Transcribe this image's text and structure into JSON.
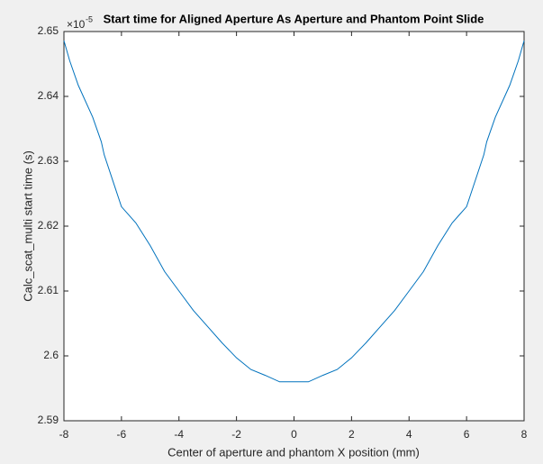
{
  "chart_data": {
    "type": "line",
    "title": "Start time for Aligned Aperture As Aperture and Phantom Point Slide",
    "x_label": "Center of aperture and phantom X position (mm)",
    "y_label": "Calc_scat_multi start time (s)",
    "y_multiplier": "×10",
    "y_multiplier_exponent": "-5",
    "x": [
      -8,
      -7.8,
      -7.5,
      -7,
      -6.7,
      -6.6,
      -6,
      -5.5,
      -5,
      -4.5,
      -4,
      -3.5,
      -3,
      -2.5,
      -2,
      -1.5,
      -1,
      -0.5,
      0,
      0.5,
      1,
      1.5,
      2,
      2.5,
      3,
      3.5,
      4,
      4.5,
      5,
      5.5,
      6,
      6.6,
      6.7,
      7,
      7.5,
      7.8,
      8
    ],
    "series": [
      {
        "name": "start time",
        "color": "#0072bd",
        "values": [
          2.6486,
          2.6455,
          2.6417,
          2.6368,
          2.633,
          2.631,
          2.623,
          2.6205,
          2.617,
          2.613,
          2.61,
          2.607,
          2.6045,
          2.602,
          2.5997,
          2.5979,
          2.597,
          2.596,
          2.596,
          2.596,
          2.597,
          2.5979,
          2.5997,
          2.602,
          2.6045,
          2.607,
          2.61,
          2.613,
          2.617,
          2.6205,
          2.623,
          2.631,
          2.633,
          2.6368,
          2.6417,
          2.6455,
          2.6486
        ]
      }
    ],
    "xlim": [
      -8,
      8
    ],
    "ylim": [
      2.59,
      2.65
    ],
    "xticks": [
      -8,
      -6,
      -4,
      -2,
      0,
      2,
      4,
      6,
      8
    ],
    "yticks": [
      2.59,
      2.6,
      2.61,
      2.62,
      2.63,
      2.64,
      2.65
    ]
  }
}
